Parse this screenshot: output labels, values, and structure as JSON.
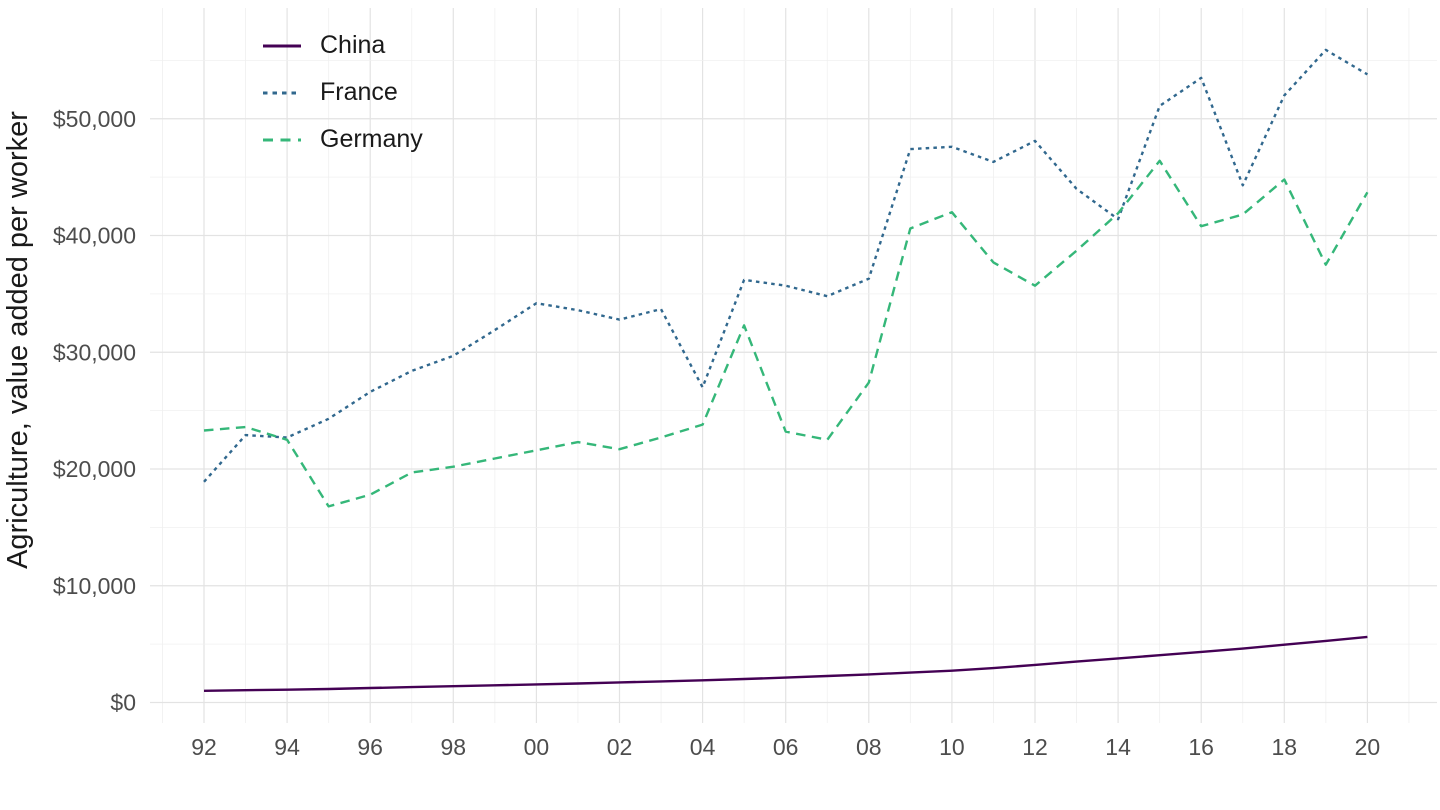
{
  "chart_data": {
    "type": "line",
    "title": "",
    "xlabel": "",
    "ylabel": "Agriculture, value added per worker",
    "x": [
      1992,
      1993,
      1994,
      1995,
      1996,
      1997,
      1998,
      1999,
      2000,
      2001,
      2002,
      2003,
      2004,
      2005,
      2006,
      2007,
      2008,
      2009,
      2010,
      2011,
      2012,
      2013,
      2014,
      2015,
      2016,
      2017,
      2018,
      2019,
      2020
    ],
    "x_ticks": [
      1992,
      1994,
      1996,
      1998,
      2000,
      2002,
      2004,
      2006,
      2008,
      2010,
      2012,
      2014,
      2016,
      2018,
      2020
    ],
    "x_tick_labels": [
      "92",
      "94",
      "96",
      "98",
      "00",
      "02",
      "04",
      "06",
      "08",
      "10",
      "12",
      "14",
      "16",
      "18",
      "20"
    ],
    "y_ticks": [
      0,
      10000,
      20000,
      30000,
      40000,
      50000
    ],
    "y_tick_labels": [
      "$0",
      "$10,000",
      "$20,000",
      "$30,000",
      "$40,000",
      "$50,000"
    ],
    "ylim": [
      0,
      58600
    ],
    "xlim": [
      1990.6,
      2021.4
    ],
    "grid": "major and minor, light gray, no panel border",
    "legend_position": "top-left-inside",
    "series": [
      {
        "name": "China",
        "color": "#440154",
        "style": "solid",
        "values": [
          1000,
          1050,
          1100,
          1160,
          1240,
          1320,
          1400,
          1470,
          1550,
          1630,
          1720,
          1810,
          1900,
          2010,
          2130,
          2270,
          2410,
          2560,
          2720,
          2950,
          3220,
          3500,
          3780,
          4050,
          4330,
          4620,
          4950,
          5280,
          5620
        ]
      },
      {
        "name": "France",
        "color": "#31688E",
        "style": "dotted",
        "values": [
          18900,
          22900,
          22700,
          24300,
          26600,
          28400,
          29700,
          31900,
          34200,
          33600,
          32800,
          33700,
          27000,
          36200,
          35700,
          34800,
          36300,
          47400,
          47600,
          46300,
          48100,
          44000,
          41400,
          51100,
          53500,
          44300,
          52000,
          55900,
          53800
        ]
      },
      {
        "name": "Germany",
        "color": "#35B779",
        "style": "dashed",
        "values": [
          23300,
          23600,
          22500,
          16800,
          17800,
          19700,
          20200,
          20900,
          21600,
          22300,
          21700,
          22700,
          23800,
          32300,
          23200,
          22500,
          27400,
          40600,
          42000,
          37700,
          35700,
          38700,
          41900,
          46400,
          40800,
          41800,
          44800,
          37500,
          43700
        ]
      }
    ],
    "style_colors": {
      "grid_major": "#e3e3e3",
      "grid_minor": "#f0f0f0",
      "tick_label": "#4d4d4d",
      "axis_title": "#1a1a1a"
    }
  }
}
